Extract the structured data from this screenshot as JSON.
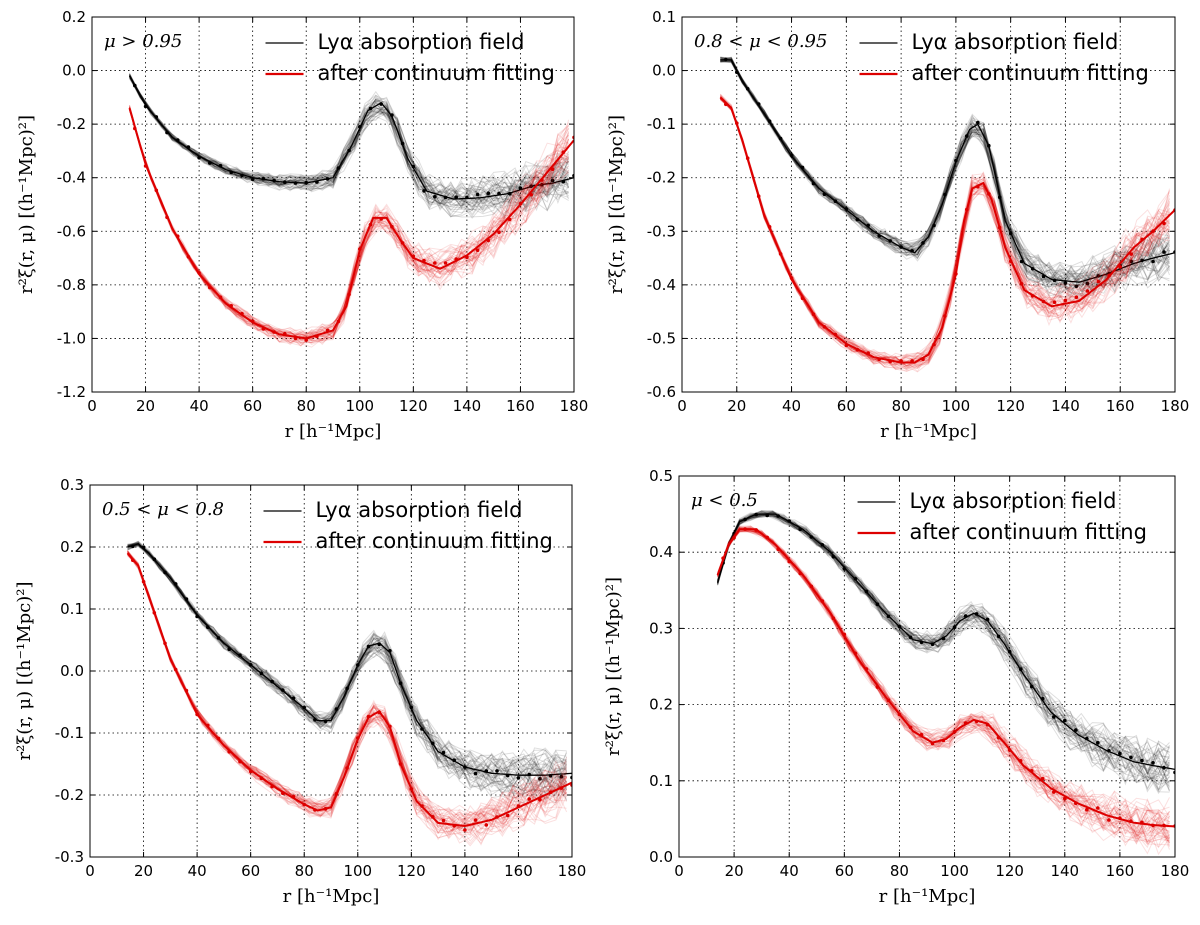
{
  "chart_data": [
    {
      "type": "line",
      "annotation": "μ > 0.95",
      "xlabel": "r [h⁻¹Mpc]",
      "ylabel": "r²ξ(r, μ) [(h⁻¹Mpc)²]",
      "xlim": [
        0,
        180
      ],
      "ylim": [
        -1.2,
        0.2
      ],
      "xticks": [
        "0",
        "20",
        "40",
        "60",
        "80",
        "100",
        "120",
        "140",
        "160",
        "180"
      ],
      "yticks": [
        "-1.2",
        "-1.0",
        "-0.8",
        "-0.6",
        "-0.4",
        "-0.2",
        "0.0",
        "0.2"
      ],
      "grid": true,
      "legend_position": "top-right",
      "series": [
        {
          "name": "Lyα absorption field",
          "color": "#000000",
          "x": [
            14,
            20,
            30,
            40,
            50,
            60,
            70,
            80,
            90,
            97,
            103,
            108,
            112,
            118,
            125,
            135,
            145,
            155,
            165,
            172,
            180
          ],
          "y": [
            -0.02,
            -0.13,
            -0.25,
            -0.32,
            -0.37,
            -0.4,
            -0.415,
            -0.42,
            -0.4,
            -0.28,
            -0.15,
            -0.12,
            -0.17,
            -0.33,
            -0.45,
            -0.48,
            -0.475,
            -0.46,
            -0.43,
            -0.42,
            -0.4
          ]
        },
        {
          "name": "after continuum fitting",
          "color": "#dd0000",
          "x": [
            14,
            20,
            30,
            40,
            50,
            60,
            70,
            80,
            90,
            95,
            100,
            105,
            110,
            115,
            120,
            130,
            140,
            150,
            160,
            170,
            180
          ],
          "y": [
            -0.14,
            -0.35,
            -0.59,
            -0.76,
            -0.87,
            -0.94,
            -0.985,
            -1.0,
            -0.97,
            -0.88,
            -0.67,
            -0.55,
            -0.55,
            -0.63,
            -0.7,
            -0.74,
            -0.69,
            -0.61,
            -0.5,
            -0.38,
            -0.26
          ]
        }
      ]
    },
    {
      "type": "line",
      "annotation": "0.8 < μ < 0.95",
      "xlabel": "r [h⁻¹Mpc]",
      "ylabel": "r²ξ(r, μ) [(h⁻¹Mpc)²]",
      "xlim": [
        0,
        180
      ],
      "ylim": [
        -0.6,
        0.1
      ],
      "xticks": [
        "0",
        "20",
        "40",
        "60",
        "80",
        "100",
        "120",
        "140",
        "160",
        "180"
      ],
      "yticks": [
        "-0.6",
        "-0.5",
        "-0.4",
        "-0.3",
        "-0.2",
        "-0.1",
        "0.0",
        "0.1"
      ],
      "grid": true,
      "legend_position": "top-right",
      "series": [
        {
          "name": "Lyα absorption field",
          "color": "#000000",
          "x": [
            14,
            18,
            22,
            30,
            40,
            50,
            60,
            70,
            80,
            85,
            90,
            95,
            100,
            105,
            108,
            112,
            118,
            125,
            135,
            145,
            155,
            165,
            172,
            180
          ],
          "y": [
            0.02,
            0.02,
            -0.02,
            -0.08,
            -0.16,
            -0.22,
            -0.26,
            -0.3,
            -0.33,
            -0.34,
            -0.31,
            -0.25,
            -0.17,
            -0.11,
            -0.1,
            -0.14,
            -0.28,
            -0.36,
            -0.39,
            -0.395,
            -0.38,
            -0.36,
            -0.35,
            -0.34
          ]
        },
        {
          "name": "after continuum fitting",
          "color": "#dd0000",
          "x": [
            14,
            18,
            22,
            30,
            40,
            50,
            60,
            70,
            80,
            85,
            90,
            95,
            100,
            103,
            106,
            110,
            113,
            118,
            125,
            135,
            145,
            155,
            165,
            172,
            180
          ],
          "y": [
            -0.05,
            -0.07,
            -0.13,
            -0.27,
            -0.39,
            -0.47,
            -0.51,
            -0.535,
            -0.545,
            -0.545,
            -0.53,
            -0.48,
            -0.38,
            -0.28,
            -0.22,
            -0.21,
            -0.24,
            -0.33,
            -0.41,
            -0.44,
            -0.43,
            -0.39,
            -0.33,
            -0.3,
            -0.26
          ]
        }
      ]
    },
    {
      "type": "line",
      "annotation": "0.5 < μ < 0.8",
      "xlabel": "r [h⁻¹Mpc]",
      "ylabel": "r²ξ(r, μ) [(h⁻¹Mpc)²]",
      "xlim": [
        0,
        180
      ],
      "ylim": [
        -0.3,
        0.3
      ],
      "xticks": [
        "0",
        "20",
        "40",
        "60",
        "80",
        "100",
        "120",
        "140",
        "160",
        "180"
      ],
      "yticks": [
        "-0.3",
        "-0.2",
        "-0.1",
        "0.0",
        "0.1",
        "0.2",
        "0.3"
      ],
      "grid": true,
      "legend_position": "top-right",
      "series": [
        {
          "name": "Lyα absorption field",
          "color": "#000000",
          "x": [
            14,
            18,
            22,
            30,
            40,
            50,
            60,
            70,
            80,
            85,
            90,
            95,
            100,
            104,
            108,
            112,
            116,
            122,
            130,
            140,
            150,
            160,
            170,
            180
          ],
          "y": [
            0.2,
            0.205,
            0.19,
            0.15,
            0.09,
            0.045,
            0.01,
            -0.025,
            -0.06,
            -0.08,
            -0.08,
            -0.04,
            0.01,
            0.04,
            0.045,
            0.03,
            -0.02,
            -0.08,
            -0.13,
            -0.155,
            -0.165,
            -0.168,
            -0.168,
            -0.165
          ]
        },
        {
          "name": "after continuum fitting",
          "color": "#dd0000",
          "x": [
            14,
            18,
            22,
            30,
            40,
            50,
            60,
            70,
            80,
            85,
            90,
            95,
            100,
            104,
            108,
            112,
            116,
            122,
            130,
            140,
            150,
            160,
            170,
            180
          ],
          "y": [
            0.19,
            0.17,
            0.12,
            0.02,
            -0.07,
            -0.12,
            -0.16,
            -0.19,
            -0.215,
            -0.225,
            -0.22,
            -0.17,
            -0.11,
            -0.075,
            -0.065,
            -0.09,
            -0.15,
            -0.21,
            -0.245,
            -0.25,
            -0.24,
            -0.22,
            -0.2,
            -0.18
          ]
        }
      ]
    },
    {
      "type": "line",
      "annotation": "μ < 0.5",
      "xlabel": "r [h⁻¹Mpc]",
      "ylabel": "r²ξ(r, μ) [(h⁻¹Mpc)²]",
      "xlim": [
        0,
        180
      ],
      "ylim": [
        0.0,
        0.5
      ],
      "xticks": [
        "0",
        "20",
        "40",
        "60",
        "80",
        "100",
        "120",
        "140",
        "160",
        "180"
      ],
      "yticks": [
        "0.0",
        "0.1",
        "0.2",
        "0.3",
        "0.4",
        "0.5"
      ],
      "grid": true,
      "legend_position": "top-right",
      "series": [
        {
          "name": "Lyα absorption field",
          "color": "#000000",
          "x": [
            14,
            18,
            22,
            28,
            35,
            45,
            55,
            65,
            75,
            85,
            92,
            97,
            102,
            107,
            112,
            118,
            125,
            135,
            145,
            155,
            165,
            172,
            180
          ],
          "y": [
            0.36,
            0.41,
            0.44,
            0.45,
            0.45,
            0.43,
            0.4,
            0.36,
            0.32,
            0.285,
            0.28,
            0.29,
            0.31,
            0.32,
            0.31,
            0.28,
            0.24,
            0.19,
            0.16,
            0.14,
            0.125,
            0.12,
            0.115
          ]
        },
        {
          "name": "after continuum fitting",
          "color": "#dd0000",
          "x": [
            14,
            18,
            22,
            28,
            35,
            45,
            55,
            65,
            75,
            85,
            92,
            97,
            102,
            107,
            112,
            118,
            125,
            135,
            145,
            155,
            165,
            172,
            180
          ],
          "y": [
            0.37,
            0.41,
            0.43,
            0.43,
            0.41,
            0.37,
            0.32,
            0.26,
            0.21,
            0.165,
            0.15,
            0.155,
            0.17,
            0.18,
            0.175,
            0.15,
            0.12,
            0.09,
            0.07,
            0.055,
            0.045,
            0.042,
            0.04
          ]
        }
      ]
    }
  ]
}
